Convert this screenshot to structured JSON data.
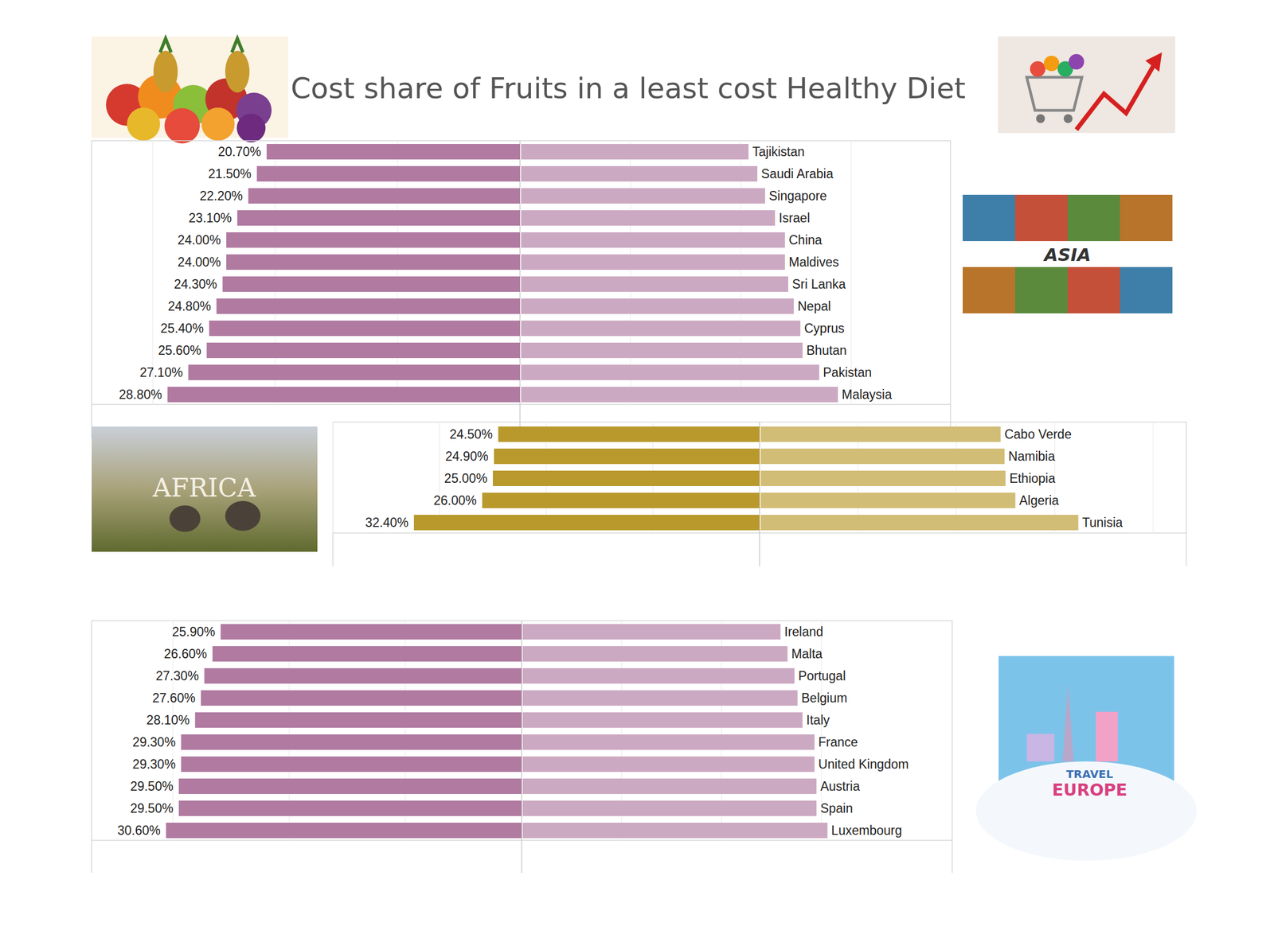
{
  "chart_data": [
    {
      "type": "bar",
      "orientation": "horizontal",
      "title": "Cost share of Fruits in a least cost Healthy Diet",
      "annotations": [
        "ASIA"
      ],
      "categories": [
        "Tajikistan",
        "Saudi Arabia",
        "Singapore",
        "Israel",
        "China",
        "Maldives",
        "Sri Lanka",
        "Nepal",
        "Cyprus",
        "Bhutan",
        "Pakistan",
        "Malaysia"
      ],
      "values": [
        20.7,
        21.5,
        22.2,
        23.1,
        24.0,
        24.0,
        24.3,
        24.8,
        25.4,
        25.6,
        27.1,
        28.8
      ],
      "value_labels": [
        "20.70%",
        "21.50%",
        "22.20%",
        "23.10%",
        "24.00%",
        "24.00%",
        "24.30%",
        "24.80%",
        "25.40%",
        "25.60%",
        "27.10%",
        "28.80%"
      ],
      "color": "#b07aa1",
      "xlim": [
        0,
        35
      ],
      "xticks": [
        0,
        10,
        20,
        30
      ],
      "grid": true,
      "data_labels": true,
      "tick_labels": false
    },
    {
      "type": "bar",
      "orientation": "horizontal",
      "annotations": [
        "AFRICA"
      ],
      "categories": [
        "Cabo Verde",
        "Namibia",
        "Ethiopia",
        "Algeria",
        "Tunisia"
      ],
      "values": [
        24.5,
        24.9,
        25.0,
        26.0,
        32.4
      ],
      "value_labels": [
        "24.50%",
        "24.90%",
        "25.00%",
        "26.00%",
        "32.40%"
      ],
      "color": "#b9992c",
      "xlim": [
        0,
        40
      ],
      "xticks": [
        0,
        10,
        20,
        30,
        40
      ],
      "grid": true,
      "data_labels": true,
      "tick_labels": false
    },
    {
      "type": "bar",
      "orientation": "horizontal",
      "annotations": [
        "TRAVEL",
        "EUROPE"
      ],
      "categories": [
        "Ireland",
        "Malta",
        "Portugal",
        "Belgium",
        "Italy",
        "France",
        "United Kingdom",
        "Austria",
        "Spain",
        "Luxembourg"
      ],
      "values": [
        25.9,
        26.6,
        27.3,
        27.6,
        28.1,
        29.3,
        29.3,
        29.5,
        29.5,
        30.6
      ],
      "value_labels": [
        "25.90%",
        "26.60%",
        "27.30%",
        "27.60%",
        "28.10%",
        "29.30%",
        "29.30%",
        "29.50%",
        "29.50%",
        "30.60%"
      ],
      "color": "#b07aa1",
      "xlim": [
        0,
        37
      ],
      "xticks": [
        0,
        10,
        20,
        30
      ],
      "grid": true,
      "data_labels": true,
      "tick_labels": false
    }
  ]
}
